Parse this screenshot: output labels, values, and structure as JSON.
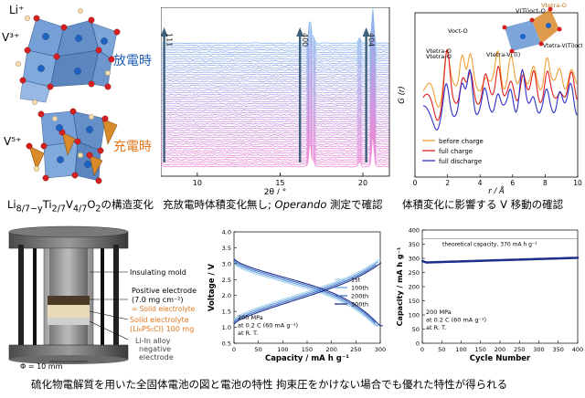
{
  "crystal": {
    "li_label": "Li⁺",
    "v3_label": "V³⁺",
    "v5_label": "V⁵⁺",
    "discharge_label": "放電時",
    "charge_label": "充電時",
    "caption_html": "Li<sub>8/7−y</sub>Ti<sub>2/7</sub>V<sub>4/7</sub>O<sub>2</sub>の構造変化"
  },
  "xrd": {
    "peak_labels": [
      "111",
      "400",
      "404"
    ],
    "peak_positions": [
      8.0,
      16.2,
      20.2
    ],
    "x_ticks": [
      10,
      15,
      20
    ],
    "x_range": [
      7.8,
      21.6
    ],
    "xlabel": "2θ / °",
    "caption_part1": "充放電時体積変化無し; ",
    "caption_italic": "Operando",
    "caption_part2": " 測定で確認",
    "colors": {
      "top": "#87b4ee",
      "bottom": "#e98ad8"
    }
  },
  "pdf": {
    "ylabel": "G (r)",
    "xlabel": "r / Å",
    "x_ticks": [
      0,
      2,
      4,
      6,
      8,
      10
    ],
    "x_range": [
      0,
      10
    ],
    "legend": [
      {
        "name": "before charge",
        "color": "#f2a033"
      },
      {
        "name": "full charge",
        "color": "#e02020"
      },
      {
        "name": "full discharge",
        "color": "#3030c8"
      }
    ],
    "annotations": [
      "V(Ti)oct-O",
      "Vtetra-O",
      "Voct-O",
      "Vtetra-O",
      "Vtetra-V(Ti)",
      "V(Ti)oct-O",
      "Vtetra-V(Ti)oct"
    ],
    "caption": "体積変化に影響する V 移動の確認"
  },
  "cell": {
    "labels": {
      "mold": "Insulating mold",
      "pos1": "Positive electrode",
      "pos2": "(7.0 mg cm⁻²)",
      "pos3": "= Solid electrolyte",
      "se1": "Solid electrolyte",
      "se2": "(Li₆PS₅Cl) 100 mg",
      "neg1": "Li-In alloy",
      "neg2": "negative",
      "neg3": "electrode",
      "dia": "Φ = 10 mm"
    }
  },
  "voltage_chart": {
    "chart_data": {
      "type": "line",
      "xlabel": "Capacity  / mA h g⁻¹",
      "ylabel": "Voltage  /  V",
      "xlim": [
        0,
        300
      ],
      "ylim": [
        0.5,
        4.0
      ],
      "x_ticks": [
        0,
        50,
        100,
        150,
        200,
        250,
        300
      ],
      "y_ticks": [
        0.5,
        1.0,
        1.5,
        2.0,
        2.5,
        3.0,
        3.5,
        4.0
      ],
      "series": [
        {
          "name": "1st",
          "color": "#a8d4f0",
          "charge_end": 300,
          "discharge_end": 300
        },
        {
          "name": "100th",
          "color": "#6da3e0",
          "charge_end": 296,
          "discharge_end": 295
        },
        {
          "name": "200th",
          "color": "#3e6fc4",
          "charge_end": 292,
          "discharge_end": 290
        },
        {
          "name": "300th",
          "color": "#1c2e8a",
          "charge_end": 302,
          "discharge_end": 305
        }
      ]
    },
    "legend": [
      "1st",
      "100th",
      "200th",
      "300th"
    ],
    "note": [
      "200 MPa",
      "at 0.2 C (60 mA g⁻¹)",
      "at R. T."
    ]
  },
  "cycle_chart": {
    "chart_data": {
      "type": "scatter",
      "xlabel": "Cycle Number",
      "ylabel": "Capacity  / mA h g⁻¹",
      "xlim": [
        0,
        400
      ],
      "ylim": [
        0,
        400
      ],
      "x_ticks": [
        0,
        50,
        100,
        150,
        200,
        250,
        300,
        350,
        400
      ],
      "y_ticks": [
        0,
        50,
        100,
        150,
        200,
        250,
        300,
        350,
        400
      ],
      "theoretical": 370,
      "series": [
        {
          "start": 285,
          "end": 302,
          "cycles": 400
        }
      ]
    },
    "theoretical_label": "theoretical capacity, 370 mA h g⁻¹",
    "note": [
      "200 MPa",
      "at 0.2 C (60 mA g⁻¹)",
      "at R. T."
    ]
  },
  "bottom_caption": "硫化物電解質を用いた全固体電池の図と電池の特性 拘束圧をかけない場合でも優れた特性が得られる"
}
